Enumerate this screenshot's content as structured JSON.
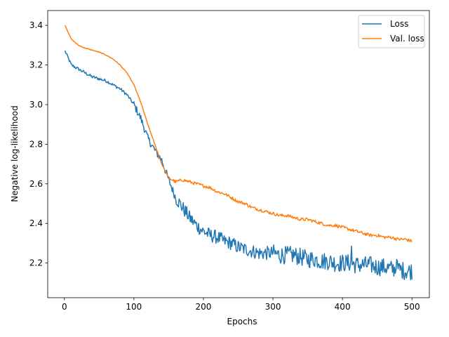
{
  "chart_data": {
    "type": "line",
    "xlabel": "Epochs",
    "ylabel": "Negative log-likelihood",
    "xlim": [
      -24,
      525
    ],
    "ylim": [
      2.025,
      3.475
    ],
    "xticks": [
      0,
      100,
      200,
      300,
      400,
      500
    ],
    "yticks": [
      2.2,
      2.4,
      2.6,
      2.8,
      3.0,
      3.2,
      3.4
    ],
    "ytick_labels": [
      "2.2",
      "2.4",
      "2.6",
      "2.8",
      "3.0",
      "3.2",
      "3.4"
    ],
    "grid": false,
    "legend_position": "top-right",
    "noise_note": false,
    "series": [
      {
        "name": "Loss",
        "color": "#1f77b4",
        "x": [
          1,
          10,
          20,
          30,
          40,
          50,
          60,
          70,
          80,
          90,
          100,
          110,
          120,
          130,
          140,
          150,
          160,
          170,
          180,
          190,
          200,
          210,
          220,
          230,
          240,
          250,
          260,
          270,
          280,
          290,
          300,
          310,
          320,
          330,
          340,
          350,
          360,
          370,
          380,
          390,
          400,
          410,
          420,
          430,
          440,
          450,
          460,
          470,
          480,
          490,
          500
        ],
        "y": [
          3.27,
          3.2,
          3.18,
          3.16,
          3.14,
          3.13,
          3.12,
          3.1,
          3.08,
          3.05,
          3.0,
          2.93,
          2.83,
          2.77,
          2.72,
          2.62,
          2.53,
          2.48,
          2.43,
          2.39,
          2.36,
          2.34,
          2.33,
          2.31,
          2.3,
          2.28,
          2.27,
          2.26,
          2.25,
          2.25,
          2.25,
          2.24,
          2.24,
          2.24,
          2.23,
          2.22,
          2.22,
          2.21,
          2.21,
          2.2,
          2.2,
          2.2,
          2.19,
          2.19,
          2.19,
          2.18,
          2.18,
          2.17,
          2.17,
          2.16,
          2.16
        ]
      },
      {
        "name": "Val. loss",
        "color": "#ff7f0e",
        "x": [
          1,
          10,
          20,
          30,
          40,
          50,
          60,
          70,
          80,
          90,
          100,
          110,
          120,
          130,
          140,
          150,
          160,
          170,
          180,
          190,
          200,
          210,
          220,
          230,
          240,
          250,
          260,
          270,
          280,
          290,
          300,
          310,
          320,
          330,
          340,
          350,
          360,
          370,
          380,
          390,
          400,
          410,
          420,
          430,
          440,
          450,
          460,
          470,
          480,
          490,
          500
        ],
        "y": [
          3.4,
          3.33,
          3.3,
          3.285,
          3.275,
          3.265,
          3.25,
          3.23,
          3.2,
          3.16,
          3.1,
          3.01,
          2.9,
          2.8,
          2.7,
          2.63,
          2.61,
          2.62,
          2.61,
          2.6,
          2.59,
          2.58,
          2.56,
          2.55,
          2.53,
          2.51,
          2.5,
          2.48,
          2.47,
          2.46,
          2.45,
          2.44,
          2.44,
          2.43,
          2.42,
          2.42,
          2.41,
          2.4,
          2.39,
          2.39,
          2.38,
          2.37,
          2.36,
          2.35,
          2.34,
          2.34,
          2.33,
          2.33,
          2.32,
          2.32,
          2.31
        ]
      }
    ]
  }
}
